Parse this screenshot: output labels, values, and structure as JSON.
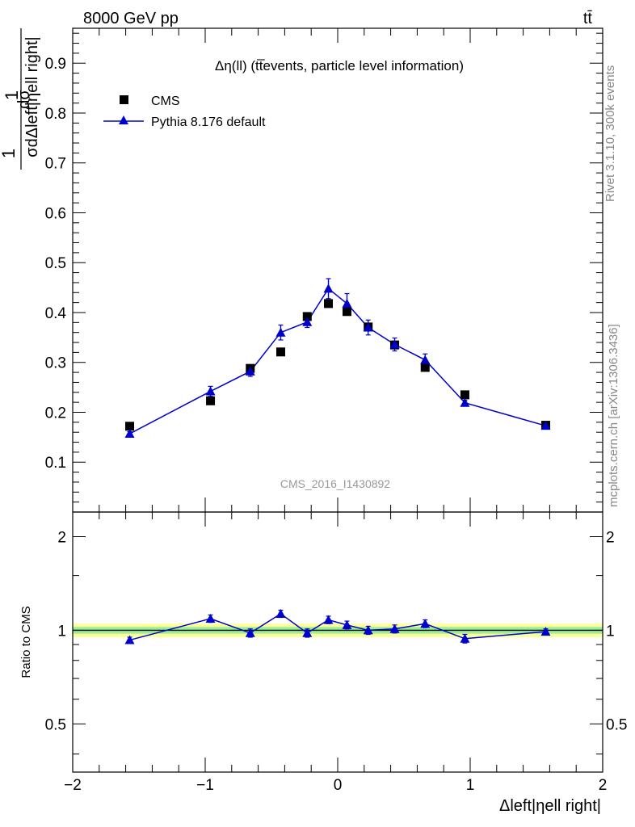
{
  "header": {
    "energy_label": "8000 GeV pp",
    "process_label": "tt̄",
    "side_rivet": "Rivet 3.1.10,  300k events",
    "side_mcplots": "mcplots.cern.ch [arXiv:1306.3436]",
    "analysis_id": "CMS_2016_I1430892"
  },
  "main_plot": {
    "title": "Δη(ll) (tt̅events, particle level information)",
    "ylabel_num": "dσ",
    "ylabel_den": "σdΔleft|ηell right|",
    "yticks": [
      "0.1",
      "0.2",
      "0.3",
      "0.4",
      "0.5",
      "0.6",
      "0.7",
      "0.8",
      "0.9"
    ]
  },
  "ratio_plot": {
    "ylabel": "Ratio to CMS",
    "yticks": [
      "0.5",
      "1",
      "2"
    ]
  },
  "x_axis": {
    "label": "Δleft|ηell right|",
    "ticks": [
      "−2",
      "−1",
      "0",
      "1",
      "2"
    ]
  },
  "legend": {
    "cms": "CMS",
    "pythia": "Pythia 8.176 default"
  },
  "colors": {
    "cms": "#000000",
    "pythia": "#0000cc",
    "band_outer": "#ffff99",
    "band_inner": "#99ee99"
  },
  "chart_data": {
    "type": "scatter",
    "x": [
      -1.57,
      -0.96,
      -0.66,
      -0.43,
      -0.23,
      -0.07,
      0.07,
      0.23,
      0.43,
      0.66,
      0.96,
      1.57
    ],
    "series": [
      {
        "name": "CMS",
        "values": [
          0.172,
          0.223,
          0.288,
          0.321,
          0.392,
          0.418,
          0.402,
          0.371,
          0.335,
          0.29,
          0.235,
          0.174
        ]
      },
      {
        "name": "Pythia 8.176 default",
        "values": [
          0.157,
          0.242,
          0.282,
          0.36,
          0.381,
          0.448,
          0.418,
          0.37,
          0.336,
          0.305,
          0.219,
          0.173
        ],
        "errors": [
          0.004,
          0.01,
          0.01,
          0.015,
          0.011,
          0.02,
          0.02,
          0.015,
          0.013,
          0.012,
          0.005,
          0.004
        ]
      }
    ],
    "ratio": {
      "values": [
        0.93,
        1.09,
        0.98,
        1.13,
        0.98,
        1.08,
        1.04,
        1.0,
        1.01,
        1.05,
        0.94,
        0.99
      ],
      "errors": [
        0.02,
        0.03,
        0.03,
        0.03,
        0.03,
        0.03,
        0.03,
        0.03,
        0.03,
        0.03,
        0.03,
        0.02
      ],
      "ylim": [
        0.35,
        2.4
      ],
      "yscale": "log",
      "band_outer": 0.05,
      "band_inner": 0.025
    },
    "xlim": [
      -2,
      2
    ],
    "ylim": [
      0,
      0.97
    ],
    "grid": false,
    "legend_position": "top-left"
  }
}
